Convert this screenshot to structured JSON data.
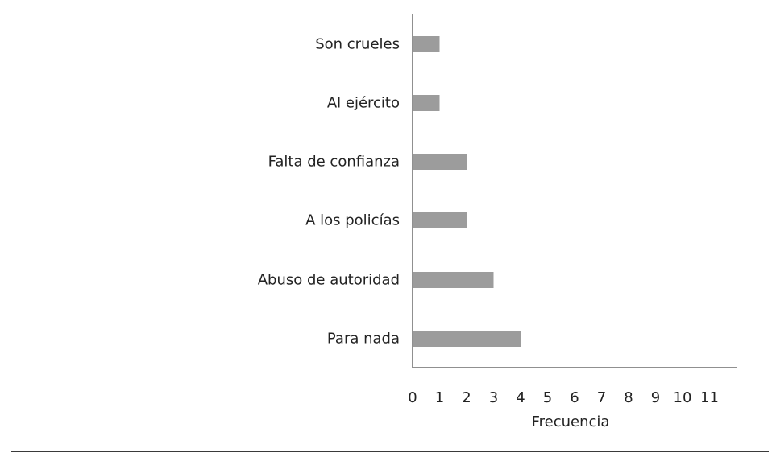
{
  "chart_data": {
    "type": "bar",
    "orientation": "horizontal",
    "categories": [
      "Son crueles",
      "Al ejército",
      "Falta de confianza",
      "A los policías",
      "Abuso de autoridad",
      "Para nada"
    ],
    "values": [
      1,
      1,
      2,
      2,
      3,
      4
    ],
    "xlabel": "Frecuencia",
    "ylabel": "",
    "xlim": [
      0,
      12
    ],
    "xticks": [
      "0",
      "1",
      "2",
      "3",
      "4",
      "5",
      "6",
      "7",
      "8",
      "9",
      "10",
      "11"
    ],
    "grid": false,
    "bar_color": "#9c9c9c",
    "axis_color": "#222222"
  }
}
